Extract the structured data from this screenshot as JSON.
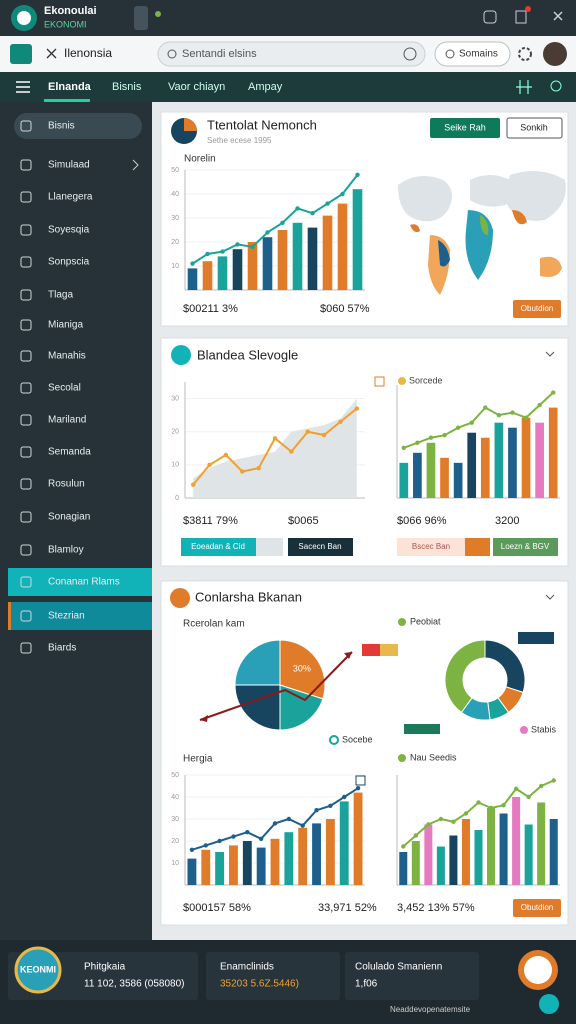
{
  "header": {
    "brand": "Ekonoulai",
    "brand_sub": "EKONOMI"
  },
  "toolbar": {
    "tab": "Ilenonsia",
    "search": "Sentandi elsins",
    "button": "Somains"
  },
  "nav": {
    "items": [
      "Elnanda",
      "Bisnis",
      "Vaor chiayn",
      "Ampay"
    ]
  },
  "sidebar": {
    "items": [
      "Bisnis",
      "Simulaad",
      "Llanegera",
      "Soyesqia",
      "Sonpscia",
      "Tlaga",
      "Mianiga",
      "Manahis",
      "Secolal",
      "Mariland",
      "Semanda",
      "Rosulun",
      "Sonagian",
      "Blamloy",
      "Conanan Rlams",
      "Stezrian",
      "Biards"
    ]
  },
  "cards": [
    {
      "title": "Ttentolat Nemonch",
      "subtitle": "Sethe ecese 1995",
      "buttons": [
        "Seike Rah",
        "Sonkih"
      ],
      "chart_label": "Norelin",
      "stats": [
        "$00211 3%",
        "$060 57%"
      ],
      "map_button": "Obutdion"
    },
    {
      "title": "Blandea Slevogle",
      "legend": "Sorcede",
      "stats": [
        "$3811 79%",
        "$0065",
        "$066 96%",
        "3200"
      ],
      "buttons": [
        "Eoeadan & Cid",
        "Sacecn Ban",
        "Bscec Ban",
        "Loezn & BGV"
      ]
    },
    {
      "title": "Conlarsha Bkanan",
      "chart_label": "Rcerolan kam",
      "pie_legend": "Socebe",
      "donut_legends": [
        "Peobiat",
        "Stabis"
      ],
      "chart_label_2": "Hergia",
      "legend_2": "Nau Seedis",
      "stats": [
        "$000157 58%",
        "33,971 52%",
        "3,452 13% 57%"
      ],
      "button": "Obutdion"
    }
  ],
  "charts": [
    {
      "type": "bar",
      "ylim": [
        0,
        50
      ],
      "yticks": [
        10,
        20,
        30,
        40,
        50
      ],
      "values": [
        9,
        12,
        14,
        17,
        20,
        22,
        25,
        28,
        26,
        31,
        36,
        42
      ],
      "colors": [
        "#1f5f8b",
        "#e07b2a",
        "#1aa39a",
        "#17445f",
        "#e07b2a",
        "#1f5f8b",
        "#e07b2a",
        "#1aa39a",
        "#17445f",
        "#e07b2a",
        "#e07b2a",
        "#1aa39a"
      ],
      "line": [
        11,
        15,
        16,
        19,
        18,
        24,
        28,
        34,
        32,
        36,
        40,
        48
      ],
      "line_color": "#1aa39a"
    },
    {
      "type": "area",
      "ylim": [
        0,
        35
      ],
      "yticks": [
        0,
        10,
        20,
        30
      ],
      "area": [
        6,
        9,
        11,
        12,
        13,
        14,
        20,
        21,
        22,
        24,
        30
      ],
      "area_color": "#dfe4e6",
      "line": [
        4,
        10,
        13,
        8,
        9,
        18,
        14,
        20,
        19,
        23,
        27
      ],
      "line_color": "#f0a030"
    },
    {
      "type": "bar",
      "ylim": [
        0,
        45
      ],
      "values": [
        14,
        18,
        22,
        16,
        14,
        26,
        24,
        30,
        28,
        32,
        30,
        36
      ],
      "colors": [
        "#1aa39a",
        "#1f5f8b",
        "#7cb342",
        "#e07b2a",
        "#1f5f8b",
        "#17445f",
        "#e07b2a",
        "#1aa39a",
        "#1f5f8b",
        "#e07b2a",
        "#e57ac0",
        "#e07b2a"
      ],
      "line": [
        20,
        22,
        24,
        25,
        28,
        30,
        36,
        33,
        34,
        32,
        37,
        42
      ],
      "line_color": "#7cb342"
    },
    {
      "type": "pie",
      "values": [
        30,
        20,
        25,
        25
      ],
      "value_labels": [
        "30%",
        null,
        null,
        null
      ],
      "colors": [
        "#e07b2a",
        "#1aa39a",
        "#17445f",
        "#2aa0b8"
      ]
    },
    {
      "type": "donut",
      "values": [
        30,
        10,
        8,
        12,
        40
      ],
      "colors": [
        "#17445f",
        "#e07b2a",
        "#1aa39a",
        "#2aa0b8",
        "#7cb342"
      ]
    },
    {
      "type": "bar",
      "ylim": [
        0,
        50
      ],
      "yticks": [
        10,
        20,
        30,
        40,
        50
      ],
      "values": [
        12,
        16,
        15,
        18,
        20,
        17,
        21,
        24,
        26,
        28,
        30,
        38,
        42
      ],
      "colors": [
        "#1f5f8b",
        "#e07b2a",
        "#1aa39a",
        "#e07b2a",
        "#17445f",
        "#1f5f8b",
        "#e07b2a",
        "#1aa39a",
        "#e07b2a",
        "#1f5f8b",
        "#e07b2a",
        "#1aa39a",
        "#e07b2a"
      ],
      "line": [
        16,
        18,
        20,
        22,
        24,
        21,
        28,
        30,
        27,
        34,
        36,
        40,
        44
      ],
      "line_color": "#1f5f8b"
    },
    {
      "type": "bar",
      "ylim": [
        0,
        40
      ],
      "values": [
        12,
        16,
        22,
        14,
        18,
        24,
        20,
        28,
        26,
        32,
        22,
        30,
        24
      ],
      "colors": [
        "#1f5f8b",
        "#7cb342",
        "#e57ac0",
        "#1aa39a",
        "#17445f",
        "#e07b2a",
        "#1aa39a",
        "#7cb342",
        "#1f5f8b",
        "#e57ac0",
        "#1aa39a",
        "#7cb342",
        "#1f5f8b"
      ],
      "line": [
        14,
        18,
        22,
        24,
        23,
        26,
        30,
        28,
        29,
        35,
        32,
        36,
        38
      ],
      "line_color": "#7cb342"
    }
  ],
  "footer": {
    "logo": "KEONMI",
    "panels": [
      {
        "title": "Phitgkaia",
        "value": "11 102, 3586 (058080)"
      },
      {
        "title": "Enamclinids",
        "value": "35203 5.6Z.5446)"
      },
      {
        "title": "Colulado Smanienn",
        "value": "1,f06"
      }
    ],
    "note": "Neaddevopenatemsite"
  }
}
